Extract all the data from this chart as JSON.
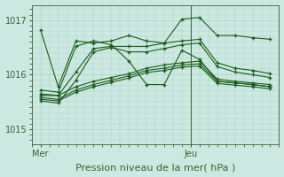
{
  "xlabel": "Pression niveau de la mer( hPa )",
  "bg_color": "#cce8e0",
  "grid_color": "#99ccbb",
  "line_color": "#1a5c1a",
  "yticks": [
    1015,
    1016,
    1017
  ],
  "ylim": [
    1014.72,
    1017.28
  ],
  "xlim": [
    -0.5,
    13.5
  ],
  "xtick_positions": [
    0,
    8.5
  ],
  "xtick_labels": [
    "Mer",
    "Jeu"
  ],
  "vline_x": 8.5,
  "series": [
    [
      1016.82,
      1015.78,
      1016.62,
      1016.58,
      1016.62,
      1016.72,
      1016.62,
      1016.58,
      1017.02,
      1017.05,
      1016.72,
      1016.72,
      1016.68,
      1016.65
    ],
    [
      1015.72,
      1015.68,
      1016.52,
      1016.62,
      1016.55,
      1016.25,
      1015.82,
      1015.82,
      1016.45,
      1016.28,
      1015.88,
      1015.85,
      1015.82,
      1015.78
    ],
    [
      1015.65,
      1015.62,
      1016.05,
      1016.48,
      1016.52,
      1016.52,
      1016.52,
      1016.58,
      1016.62,
      1016.65,
      1016.22,
      1016.12,
      1016.08,
      1016.02
    ],
    [
      1015.62,
      1015.62,
      1015.78,
      1015.88,
      1015.95,
      1016.02,
      1016.12,
      1016.18,
      1016.22,
      1016.25,
      1015.92,
      1015.88,
      1015.85,
      1015.82
    ],
    [
      1015.58,
      1015.55,
      1015.72,
      1015.82,
      1015.9,
      1015.98,
      1016.08,
      1016.12,
      1016.18,
      1016.2,
      1015.88,
      1015.85,
      1015.82,
      1015.78
    ],
    [
      1015.55,
      1015.52,
      1015.68,
      1015.78,
      1015.86,
      1015.94,
      1016.04,
      1016.08,
      1016.14,
      1016.16,
      1015.84,
      1015.81,
      1015.78,
      1015.74
    ],
    [
      1015.52,
      1015.48,
      1015.9,
      1016.42,
      1016.5,
      1016.42,
      1016.42,
      1016.48,
      1016.55,
      1016.58,
      1016.15,
      1016.05,
      1016.0,
      1015.95
    ]
  ]
}
